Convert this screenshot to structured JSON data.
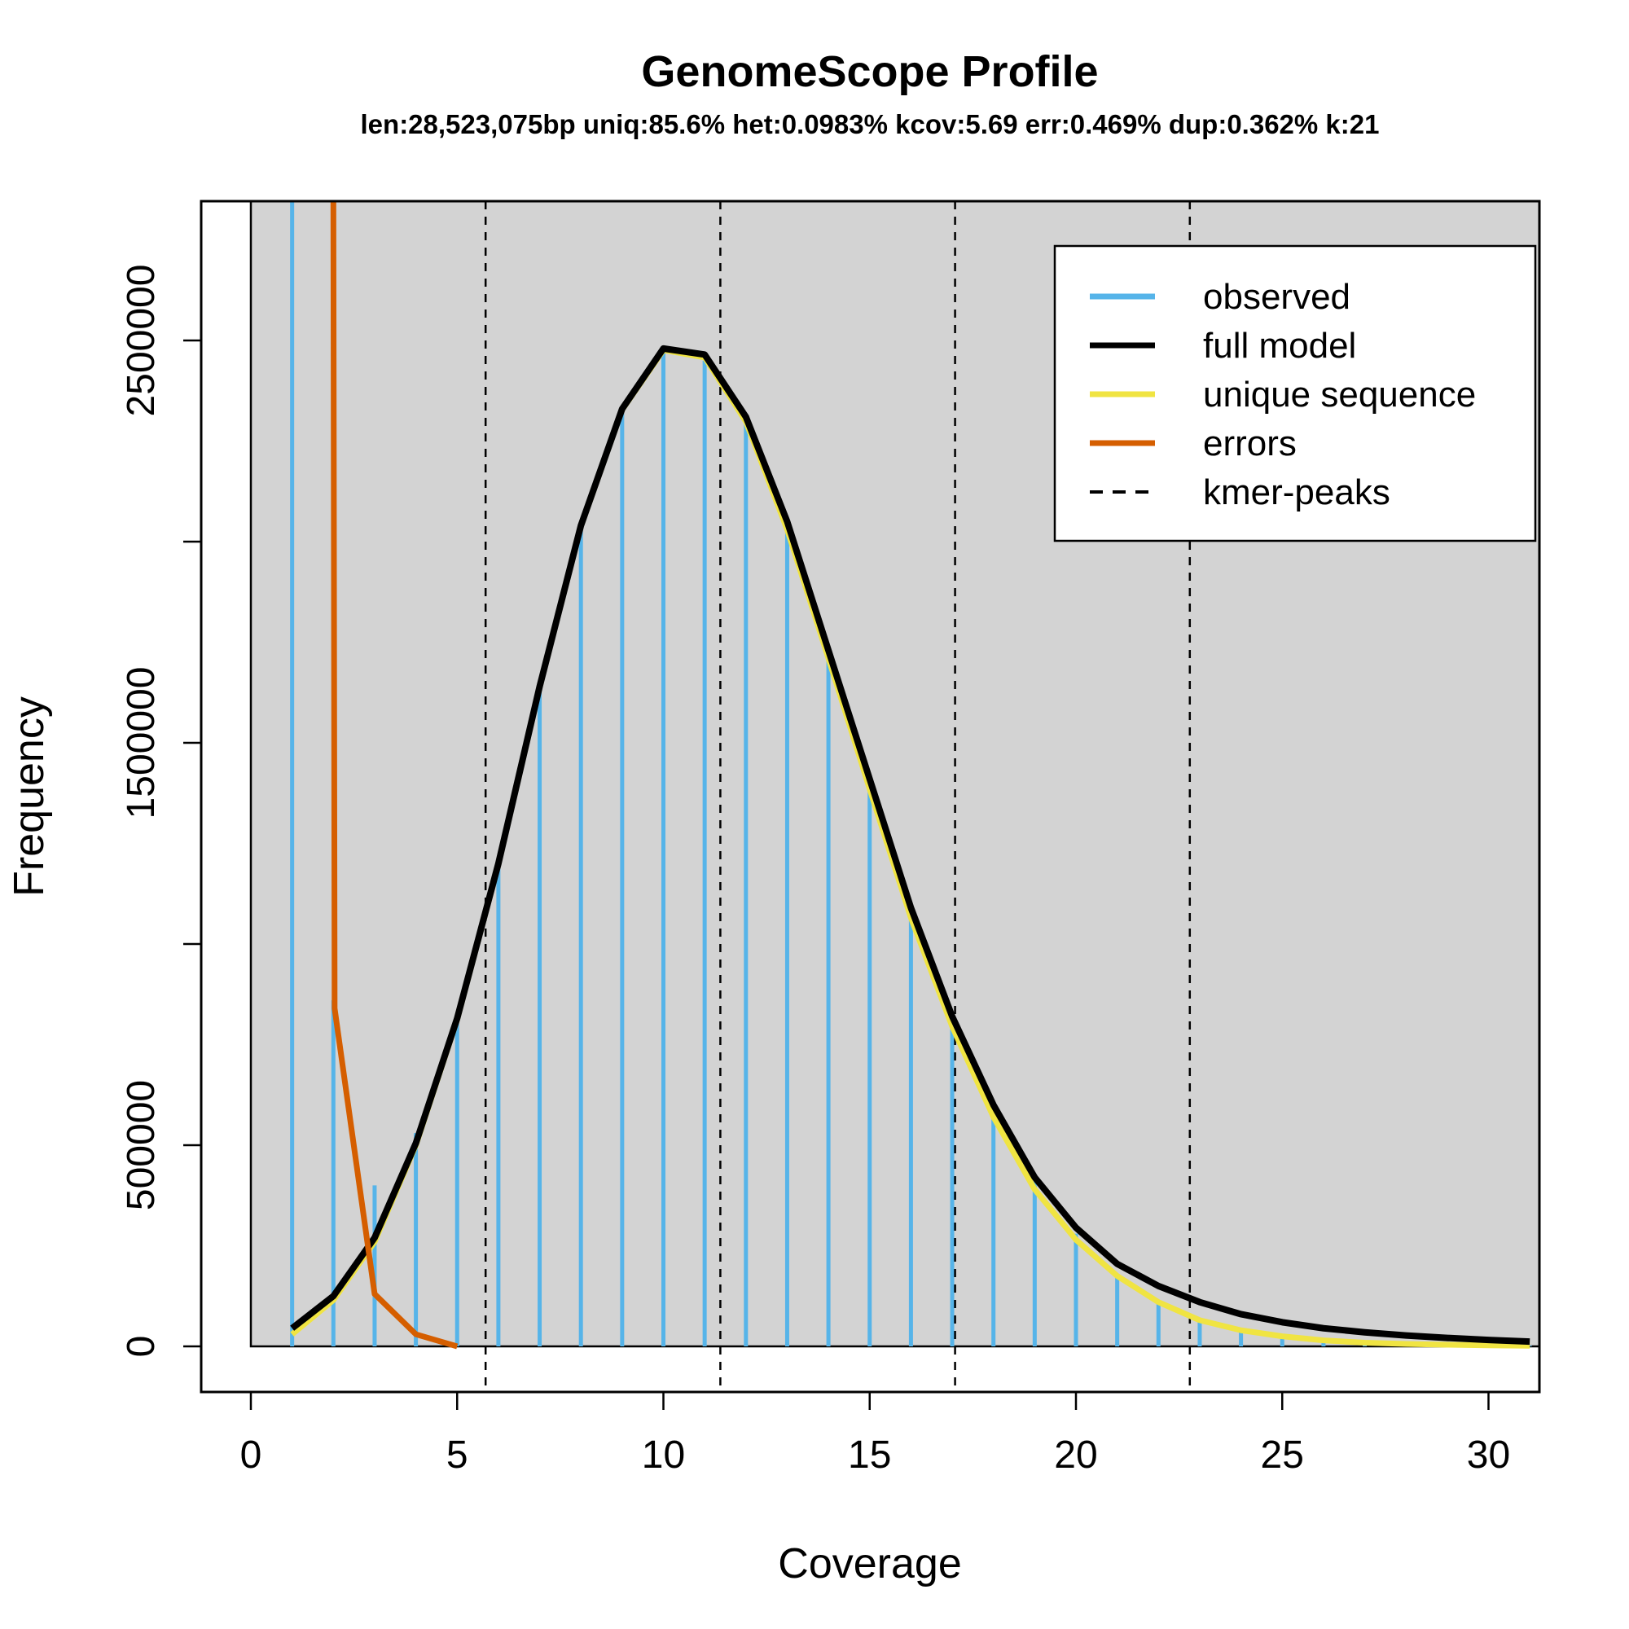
{
  "chart_data": {
    "type": "line",
    "title": "GenomeScope Profile",
    "subtitle": "len:28,523,075bp uniq:85.6%  het:0.0983% kcov:5.69 err:0.469%  dup:0.362%  k:21",
    "xlabel": "Coverage",
    "ylabel": "Frequency",
    "xlim": [
      0,
      31
    ],
    "ylim": [
      0,
      2850000
    ],
    "x_ticks": [
      0,
      5,
      10,
      15,
      20,
      25,
      30
    ],
    "x_tick_labels": [
      "0",
      "5",
      "10",
      "15",
      "20",
      "25",
      "30"
    ],
    "y_ticks": [
      0,
      500000,
      1000000,
      1500000,
      2000000,
      2500000
    ],
    "y_tick_labels": [
      "0",
      "500000",
      "",
      "1500000",
      "",
      "2500000"
    ],
    "grid": false,
    "legend_position": "top-right",
    "kmer_peaks": [
      5.69,
      11.38,
      17.07,
      22.76
    ],
    "series": [
      {
        "name": "observed",
        "style": "vertical-bars",
        "color": "#56B4E9",
        "x": [
          1,
          2,
          3,
          4,
          5,
          6,
          7,
          8,
          9,
          10,
          11,
          12,
          13,
          14,
          15,
          16,
          17,
          18,
          19,
          20,
          21,
          22,
          23,
          24,
          25,
          26,
          27,
          28,
          29,
          30,
          31
        ],
        "values": [
          4000000,
          860000,
          400000,
          530000,
          810000,
          1200000,
          1630000,
          2030000,
          2330000,
          2470000,
          2450000,
          2300000,
          2030000,
          1720000,
          1380000,
          1080000,
          810000,
          580000,
          410000,
          280000,
          180000,
          110000,
          70000,
          45000,
          28000,
          18000,
          12000,
          8000,
          5000,
          3000,
          2000
        ]
      },
      {
        "name": "full model",
        "style": "line",
        "color": "#000000",
        "x": [
          1,
          2,
          3,
          4,
          5,
          6,
          7,
          8,
          9,
          10,
          11,
          12,
          13,
          14,
          15,
          16,
          17,
          18,
          19,
          20,
          21,
          22,
          23,
          24,
          25,
          26,
          27,
          28,
          29,
          30,
          31
        ],
        "values": [
          45000,
          125000,
          270000,
          505000,
          815000,
          1200000,
          1640000,
          2040000,
          2330000,
          2480000,
          2465000,
          2310000,
          2050000,
          1730000,
          1410000,
          1090000,
          820000,
          600000,
          420000,
          295000,
          205000,
          150000,
          110000,
          80000,
          60000,
          45000,
          35000,
          27000,
          21000,
          16000,
          12000
        ]
      },
      {
        "name": "unique sequence",
        "style": "line",
        "color": "#F0E442",
        "x": [
          1,
          2,
          3,
          4,
          5,
          6,
          7,
          8,
          9,
          10,
          11,
          12,
          13,
          14,
          15,
          16,
          17,
          18,
          19,
          20,
          21,
          22,
          23,
          24,
          25,
          26,
          27,
          28,
          29,
          30,
          31
        ],
        "values": [
          30000,
          115000,
          260000,
          500000,
          812000,
          1198000,
          1638000,
          2038000,
          2328000,
          2476000,
          2458000,
          2298000,
          2030000,
          1710000,
          1385000,
          1065000,
          795000,
          570000,
          390000,
          265000,
          175000,
          110000,
          65000,
          40000,
          25000,
          15000,
          9000,
          6000,
          4000,
          2500,
          1500
        ]
      },
      {
        "name": "errors",
        "style": "line",
        "color": "#D55E00",
        "x": [
          2,
          2.03,
          3,
          4,
          5
        ],
        "values": [
          2850000,
          840000,
          130000,
          30000,
          0
        ]
      },
      {
        "name": "kmer-peaks",
        "style": "dashed-vertical",
        "color": "#000000"
      }
    ]
  }
}
